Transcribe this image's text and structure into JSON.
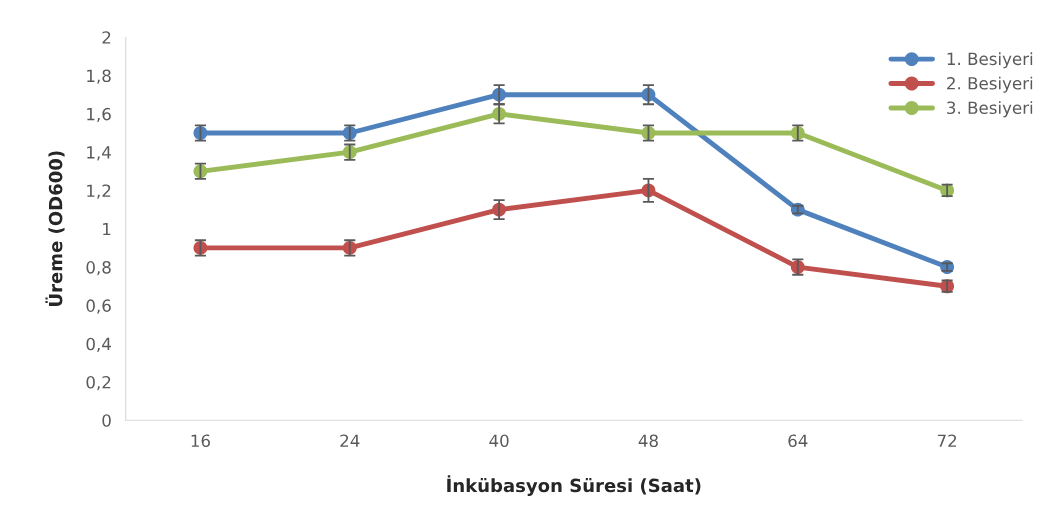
{
  "chart_data": {
    "type": "line",
    "xlabel": "İnkübasyon Süresi (Saat)",
    "ylabel": "Üreme (OD600)",
    "categories": [
      "16",
      "24",
      "40",
      "48",
      "64",
      "72"
    ],
    "series": [
      {
        "name": "1. Besiyeri",
        "color": "#4f81bd",
        "values": [
          1.5,
          1.5,
          1.7,
          1.7,
          1.1,
          0.8
        ],
        "errors": [
          0.04,
          0.04,
          0.05,
          0.05,
          0.02,
          0.02
        ]
      },
      {
        "name": "2. Besiyeri",
        "color": "#c0504d",
        "values": [
          0.9,
          0.9,
          1.1,
          1.2,
          0.8,
          0.7
        ],
        "errors": [
          0.04,
          0.04,
          0.05,
          0.06,
          0.04,
          0.03
        ]
      },
      {
        "name": "3. Besiyeri",
        "color": "#9bbb59",
        "values": [
          1.3,
          1.4,
          1.6,
          1.5,
          1.5,
          1.2
        ],
        "errors": [
          0.04,
          0.04,
          0.05,
          0.04,
          0.04,
          0.03
        ]
      }
    ],
    "ylim": [
      0,
      2
    ],
    "yticks": [
      0,
      {
        "value": 0.2,
        "label": "0,2"
      },
      {
        "value": 0.4,
        "label": "0,4"
      },
      {
        "value": 0.6,
        "label": "0,6"
      },
      {
        "value": 0.8,
        "label": "0,8"
      },
      1,
      {
        "value": 1.2,
        "label": "1,2"
      },
      {
        "value": 1.4,
        "label": "1,4"
      },
      {
        "value": 1.6,
        "label": "1,6"
      },
      {
        "value": 1.8,
        "label": "1,8"
      },
      2
    ],
    "grid": false,
    "legend": "top right",
    "marker": "circle",
    "line_style": "solid"
  }
}
